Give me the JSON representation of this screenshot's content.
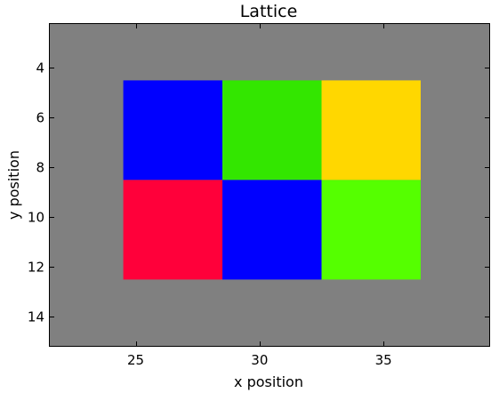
{
  "chart_data": {
    "type": "heatmap",
    "title": "Lattice",
    "xlabel": "x position",
    "ylabel": "y position",
    "xlim": [
      21.5,
      39.3
    ],
    "ylim": [
      15.2,
      2.2
    ],
    "y_inverted": true,
    "grid": false,
    "background_color": "#808080",
    "xticks": [
      25,
      30,
      35
    ],
    "yticks": [
      4,
      6,
      8,
      10,
      12,
      14
    ],
    "cell_width": 4,
    "cell_height": 4,
    "cells": [
      {
        "x": 26.5,
        "y": 6.5,
        "color": "#0000ff"
      },
      {
        "x": 30.5,
        "y": 6.5,
        "color": "#33e600"
      },
      {
        "x": 34.5,
        "y": 6.5,
        "color": "#ffd700"
      },
      {
        "x": 26.5,
        "y": 10.5,
        "color": "#ff003a"
      },
      {
        "x": 30.5,
        "y": 10.5,
        "color": "#0000ff"
      },
      {
        "x": 34.5,
        "y": 10.5,
        "color": "#55ff00"
      }
    ]
  }
}
